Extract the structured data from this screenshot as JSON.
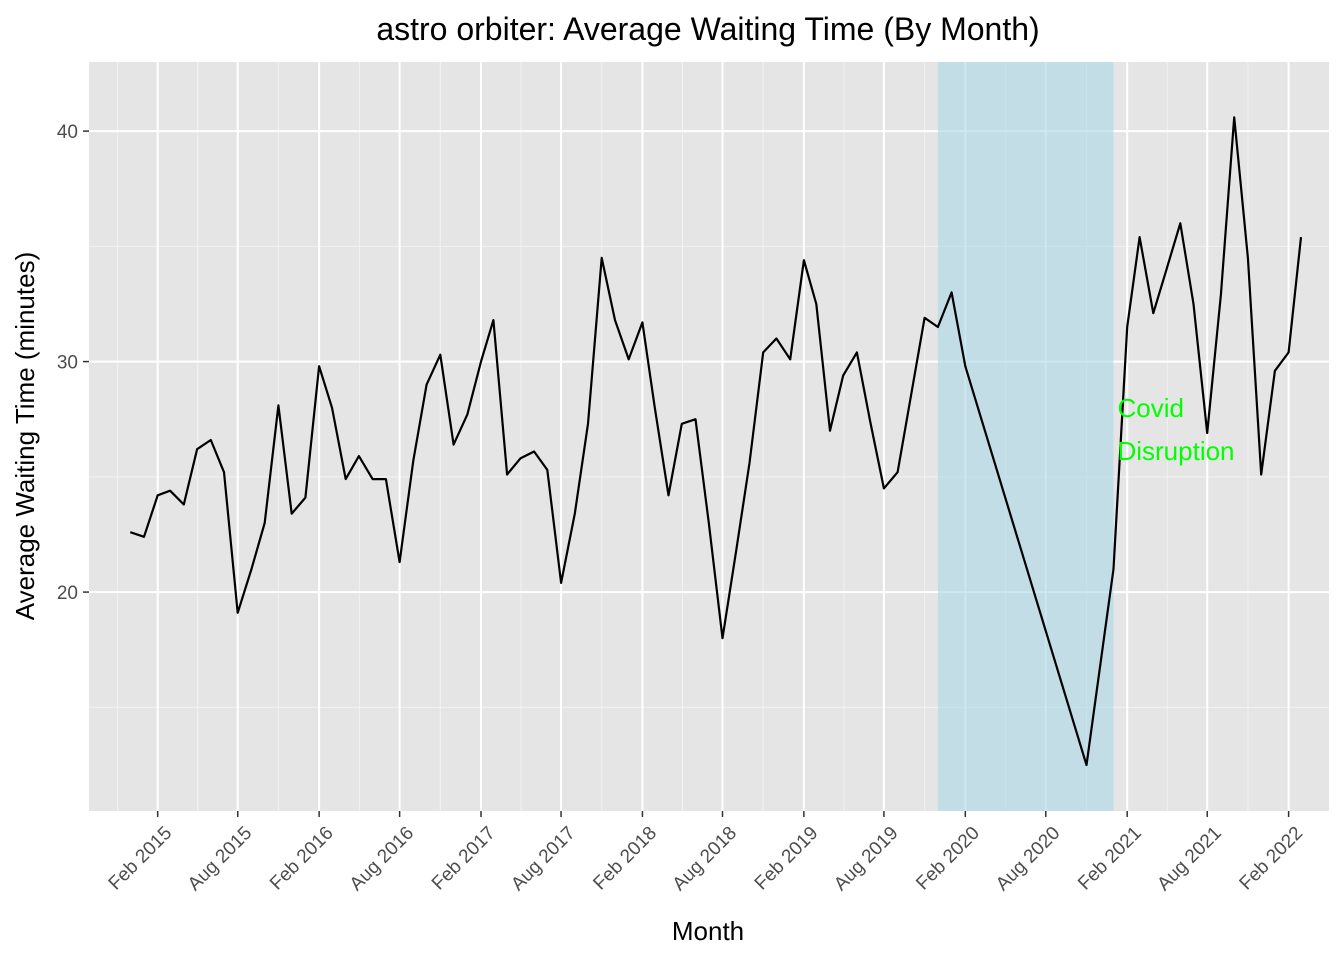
{
  "chart_data": {
    "type": "line",
    "title": "astro orbiter: Average Waiting Time (By Month)",
    "xlabel": "Month",
    "ylabel": "Average Waiting Time (minutes)",
    "grid": true,
    "legend": "none",
    "xlim": [
      "2014-11-01",
      "2022-03-01"
    ],
    "ylim": [
      11.5,
      42
    ],
    "x_ticks": [
      "2015-02-01",
      "2015-08-01",
      "2016-02-01",
      "2016-08-01",
      "2017-02-01",
      "2017-08-01",
      "2018-02-01",
      "2018-08-01",
      "2019-02-01",
      "2019-08-01",
      "2020-02-01",
      "2020-08-01",
      "2021-02-01",
      "2021-08-01",
      "2022-02-01"
    ],
    "x_tick_labels": [
      "Feb 2015",
      "Aug 2015",
      "Feb 2016",
      "Aug 2016",
      "Feb 2017",
      "Aug 2017",
      "Feb 2018",
      "Aug 2018",
      "Feb 2019",
      "Aug 2019",
      "Feb 2020",
      "Aug 2020",
      "Feb 2021",
      "Aug 2021",
      "Feb 2022"
    ],
    "y_ticks": [
      20,
      30,
      40
    ],
    "y_tick_labels": [
      "20",
      "30",
      "40"
    ],
    "series": [
      {
        "color": "#000000",
        "points": [
          [
            "2014-12-01",
            22.6
          ],
          [
            "2015-01-01",
            22.4
          ],
          [
            "2015-02-01",
            24.2
          ],
          [
            "2015-03-01",
            24.4
          ],
          [
            "2015-04-01",
            23.8
          ],
          [
            "2015-05-01",
            26.2
          ],
          [
            "2015-06-01",
            26.6
          ],
          [
            "2015-07-01",
            25.2
          ],
          [
            "2015-08-01",
            19.1
          ],
          [
            "2015-09-01",
            21.0
          ],
          [
            "2015-10-01",
            23.0
          ],
          [
            "2015-11-01",
            28.1
          ],
          [
            "2015-12-01",
            23.4
          ],
          [
            "2016-01-01",
            24.1
          ],
          [
            "2016-02-01",
            29.8
          ],
          [
            "2016-03-01",
            28.0
          ],
          [
            "2016-04-01",
            24.9
          ],
          [
            "2016-05-01",
            25.9
          ],
          [
            "2016-06-01",
            24.9
          ],
          [
            "2016-07-01",
            24.9
          ],
          [
            "2016-08-01",
            21.3
          ],
          [
            "2016-09-01",
            25.7
          ],
          [
            "2016-10-01",
            29.0
          ],
          [
            "2016-11-01",
            30.3
          ],
          [
            "2016-12-01",
            26.4
          ],
          [
            "2017-01-01",
            27.7
          ],
          [
            "2017-02-01",
            30.0
          ],
          [
            "2017-03-01",
            31.8
          ],
          [
            "2017-04-01",
            25.1
          ],
          [
            "2017-05-01",
            25.8
          ],
          [
            "2017-06-01",
            26.1
          ],
          [
            "2017-07-01",
            25.3
          ],
          [
            "2017-08-01",
            20.4
          ],
          [
            "2017-09-01",
            23.4
          ],
          [
            "2017-10-01",
            27.3
          ],
          [
            "2017-11-01",
            34.5
          ],
          [
            "2017-12-01",
            31.8
          ],
          [
            "2018-01-01",
            30.1
          ],
          [
            "2018-02-01",
            31.7
          ],
          [
            "2018-03-01",
            28.0
          ],
          [
            "2018-04-01",
            24.2
          ],
          [
            "2018-05-01",
            27.3
          ],
          [
            "2018-06-01",
            27.5
          ],
          [
            "2018-07-01",
            23.0
          ],
          [
            "2018-08-01",
            18.0
          ],
          [
            "2018-09-01",
            21.8
          ],
          [
            "2018-10-01",
            25.6
          ],
          [
            "2018-11-01",
            30.4
          ],
          [
            "2018-12-01",
            31.0
          ],
          [
            "2019-01-01",
            30.1
          ],
          [
            "2019-02-01",
            34.4
          ],
          [
            "2019-03-01",
            32.5
          ],
          [
            "2019-04-01",
            27.0
          ],
          [
            "2019-05-01",
            29.4
          ],
          [
            "2019-06-01",
            30.4
          ],
          [
            "2019-07-01",
            27.4
          ],
          [
            "2019-08-01",
            24.5
          ],
          [
            "2019-09-01",
            25.2
          ],
          [
            "2019-10-01",
            28.5
          ],
          [
            "2019-11-01",
            31.9
          ],
          [
            "2019-12-01",
            31.5
          ],
          [
            "2020-01-01",
            33.0
          ],
          [
            "2020-02-01",
            29.8
          ],
          [
            "2020-11-01",
            12.5
          ],
          [
            "2021-01-01",
            21.0
          ],
          [
            "2021-02-01",
            31.5
          ],
          [
            "2021-03-01",
            35.4
          ],
          [
            "2021-04-01",
            32.1
          ],
          [
            "2021-05-01",
            34.0
          ],
          [
            "2021-06-01",
            36.0
          ],
          [
            "2021-07-01",
            32.5
          ],
          [
            "2021-08-01",
            26.9
          ],
          [
            "2021-09-01",
            32.9
          ],
          [
            "2021-10-01",
            40.6
          ],
          [
            "2021-11-01",
            34.5
          ],
          [
            "2021-12-01",
            25.1
          ],
          [
            "2022-01-01",
            29.6
          ],
          [
            "2022-02-01",
            30.4
          ],
          [
            "2022-03-01",
            35.4
          ]
        ]
      }
    ],
    "shaded_region": {
      "x_start": "2019-12-01",
      "x_end": "2021-01-01",
      "color": "#add8e6"
    },
    "annotation": {
      "text_lines": [
        "Covid",
        "Disruption"
      ],
      "x": "2021-01-01",
      "y": 27,
      "color": "#00ff00"
    },
    "colors": {
      "panel_background": "#e5e5e5",
      "grid_major": "#ffffff",
      "grid_minor": "#f2f2f2"
    }
  }
}
